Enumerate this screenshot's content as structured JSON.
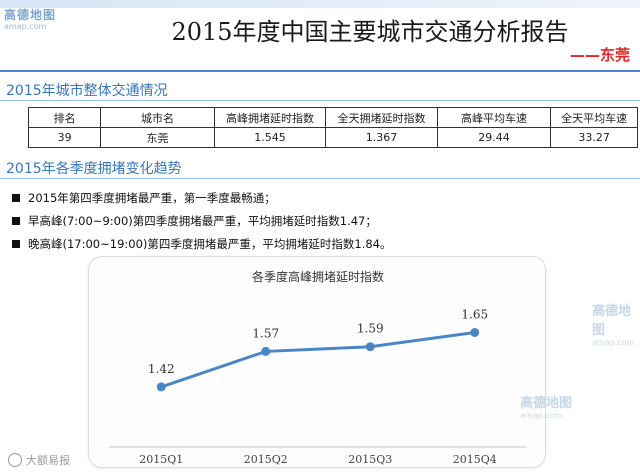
{
  "header": {
    "logo_cn": "高德地图",
    "logo_en": "amap.com",
    "title": "2015年度中国主要城市交通分析报告",
    "subtitle": "——东莞"
  },
  "section1": {
    "title": "2015年城市整体交通情况",
    "columns": [
      "排名",
      "城市名",
      "高峰拥堵延时指数",
      "全天拥堵延时指数",
      "高峰平均车速",
      "全天平均车速"
    ],
    "row": [
      "39",
      "东莞",
      "1.545",
      "1.367",
      "29.44",
      "33.27"
    ]
  },
  "section2": {
    "title": "2015年各季度拥堵变化趋势",
    "bullets": [
      "2015年第四季度拥堵最严重，第一季度最畅通；",
      "早高峰(7:00~9:00)第四季度拥堵最严重，平均拥堵延时指数1.47；",
      "晚高峰(17:00~19:00)第四季度拥堵最严重，平均拥堵延时指数1.84。"
    ]
  },
  "watermark": {
    "cn": "高德地图",
    "en": "amap.com"
  },
  "footer": {
    "source": "大额易报"
  },
  "colors": {
    "accent": "#3a76b8",
    "series": "#4a86c5",
    "subtitle": "#d92b2b"
  },
  "chart_data": {
    "type": "line",
    "title": "各季度高峰拥堵延时指数",
    "categories": [
      "2015Q1",
      "2015Q2",
      "2015Q3",
      "2015Q4"
    ],
    "series": [
      {
        "values": [
          1.42,
          1.57,
          1.59,
          1.65
        ]
      }
    ],
    "data_labels": [
      "1.42",
      "1.57",
      "1.59",
      "1.65"
    ],
    "ylim": [
      1.2,
      1.8
    ],
    "grid": false,
    "legend": "none"
  }
}
